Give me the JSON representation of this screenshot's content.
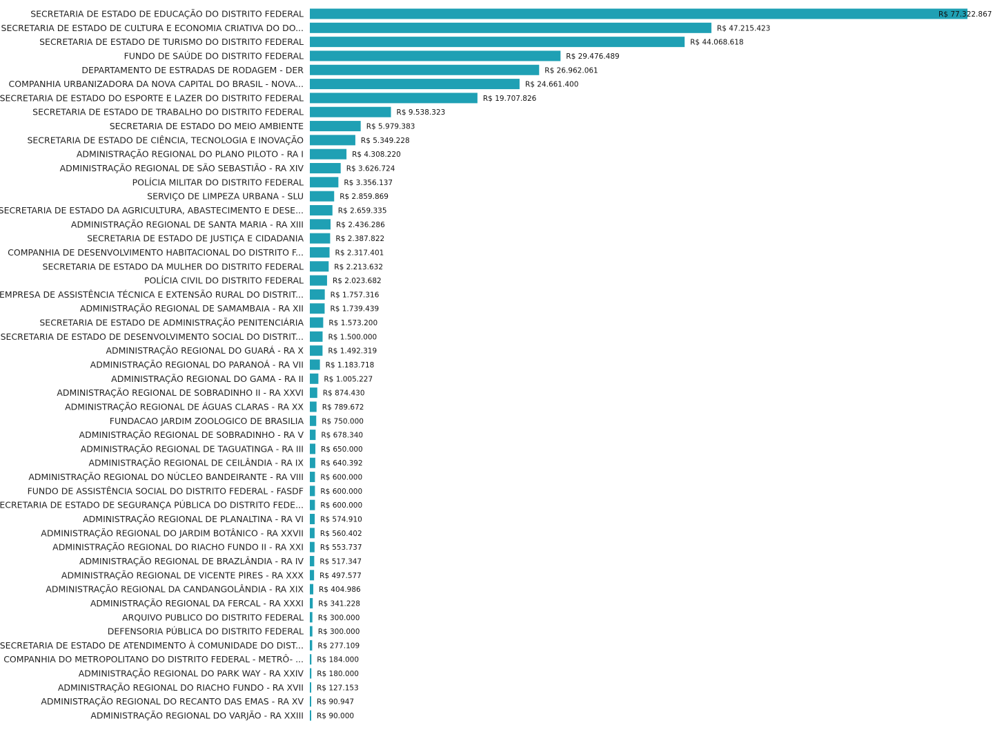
{
  "chart_data": {
    "type": "bar",
    "orientation": "horizontal",
    "bar_color": "#1fa0b4",
    "value_prefix": "R$ ",
    "xlim": [
      0,
      77322867
    ],
    "grid": false,
    "categories": [
      "SECRETARIA DE ESTADO DE EDUCAÇÃO DO DISTRITO FEDERAL",
      "SECRETARIA DE ESTADO DE CULTURA E ECONOMIA CRIATIVA DO DO...",
      "SECRETARIA DE ESTADO DE TURISMO DO DISTRITO FEDERAL",
      "FUNDO DE SAÚDE DO DISTRITO FEDERAL",
      "DEPARTAMENTO DE ESTRADAS DE RODAGEM - DER",
      "COMPANHIA URBANIZADORA DA NOVA CAPITAL DO BRASIL - NOVA...",
      "SECRETARIA DE ESTADO DO ESPORTE E LAZER DO DISTRITO FEDERAL",
      "SECRETARIA DE ESTADO DE TRABALHO DO DISTRITO FEDERAL",
      "SECRETARIA DE ESTADO DO MEIO AMBIENTE",
      "SECRETARIA DE ESTADO DE CIÊNCIA, TECNOLOGIA E INOVAÇÃO",
      "ADMINISTRAÇÃO REGIONAL DO PLANO PILOTO - RA I",
      "ADMINISTRAÇÃO REGIONAL DE SÃO SEBASTIÃO - RA XIV",
      "POLÍCIA MILITAR DO DISTRITO FEDERAL",
      "SERVIÇO DE LIMPEZA URBANA - SLU",
      "SECRETARIA DE ESTADO DA AGRICULTURA, ABASTECIMENTO E DESE...",
      "ADMINISTRAÇÃO REGIONAL DE SANTA MARIA - RA XIII",
      "SECRETARIA DE ESTADO DE JUSTIÇA E CIDADANIA",
      "COMPANHIA DE DESENVOLVIMENTO HABITACIONAL DO DISTRITO F...",
      "SECRETARIA DE ESTADO DA MULHER DO DISTRITO FEDERAL",
      "POLÍCIA CIVIL DO DISTRITO FEDERAL",
      "EMPRESA DE ASSISTÊNCIA TÉCNICA E EXTENSÃO RURAL DO DISTRIT...",
      "ADMINISTRAÇÃO REGIONAL DE SAMAMBAIA - RA XII",
      "SECRETARIA DE ESTADO DE ADMINISTRAÇÃO PENITENCIÁRIA",
      "SECRETARIA DE ESTADO DE DESENVOLVIMENTO SOCIAL DO DISTRIT...",
      "ADMINISTRAÇÃO REGIONAL DO GUARÁ - RA X",
      "ADMINISTRAÇÃO REGIONAL DO PARANOÁ - RA VII",
      "ADMINISTRAÇÃO REGIONAL DO GAMA - RA II",
      "ADMINISTRAÇÃO REGIONAL DE SOBRADINHO II - RA XXVI",
      "ADMINISTRAÇÃO REGIONAL DE ÁGUAS CLARAS - RA XX",
      "FUNDACAO JARDIM ZOOLOGICO DE BRASILIA",
      "ADMINISTRAÇÃO REGIONAL DE SOBRADINHO - RA V",
      "ADMINISTRAÇÃO REGIONAL DE TAGUATINGA - RA III",
      "ADMINISTRAÇÃO REGIONAL DE CEILÂNDIA - RA IX",
      "ADMINISTRAÇÃO REGIONAL DO NÚCLEO BANDEIRANTE - RA VIII",
      "FUNDO DE ASSISTÊNCIA SOCIAL DO DISTRITO FEDERAL - FASDF",
      "SECRETARIA DE ESTADO DE SEGURANÇA PÚBLICA DO DISTRITO FEDE...",
      "ADMINISTRAÇÃO REGIONAL DE PLANALTINA - RA VI",
      "ADMINISTRAÇÃO REGIONAL DO JARDIM BOTÂNICO - RA XXVII",
      "ADMINISTRAÇÃO REGIONAL DO RIACHO FUNDO II - RA XXI",
      "ADMINISTRAÇÃO REGIONAL DE BRAZLÂNDIA - RA IV",
      "ADMINISTRAÇÃO REGIONAL DE VICENTE PIRES - RA XXX",
      "ADMINISTRAÇÃO REGIONAL DA CANDANGOLÂNDIA - RA XIX",
      "ADMINISTRAÇÃO REGIONAL DA FERCAL - RA XXXI",
      "ARQUIVO PUBLICO DO DISTRITO FEDERAL",
      "DEFENSORIA PÚBLICA DO DISTRITO FEDERAL",
      "SECRETARIA DE ESTADO DE ATENDIMENTO À COMUNIDADE DO DIST...",
      "COMPANHIA DO METROPOLITANO DO DISTRITO FEDERAL - METRÔ- ...",
      "ADMINISTRAÇÃO REGIONAL DO PARK WAY - RA XXIV",
      "ADMINISTRAÇÃO REGIONAL DO RIACHO FUNDO - RA XVII",
      "ADMINISTRAÇÃO REGIONAL DO RECANTO DAS EMAS - RA XV",
      "ADMINISTRAÇÃO REGIONAL DO VARJÃO - RA XXIII"
    ],
    "values": [
      77322867,
      47215423,
      44068618,
      29476489,
      26962061,
      24661400,
      19707826,
      9538323,
      5979383,
      5349228,
      4308220,
      3626724,
      3356137,
      2859869,
      2659335,
      2436286,
      2387822,
      2317401,
      2213632,
      2023682,
      1757316,
      1739439,
      1573200,
      1500000,
      1492319,
      1183718,
      1005227,
      874430,
      789672,
      750000,
      678340,
      650000,
      640392,
      600000,
      600000,
      600000,
      574910,
      560402,
      553737,
      517347,
      497577,
      404986,
      341228,
      300000,
      300000,
      277109,
      184000,
      180000,
      127153,
      90947,
      90000
    ],
    "value_labels": [
      "R$ 77.322.867",
      "R$ 47.215.423",
      "R$ 44.068.618",
      "R$ 29.476.489",
      "R$ 26.962.061",
      "R$ 24.661.400",
      "R$ 19.707.826",
      "R$ 9.538.323",
      "R$ 5.979.383",
      "R$ 5.349.228",
      "R$ 4.308.220",
      "R$ 3.626.724",
      "R$ 3.356.137",
      "R$ 2.859.869",
      "R$ 2.659.335",
      "R$ 2.436.286",
      "R$ 2.387.822",
      "R$ 2.317.401",
      "R$ 2.213.632",
      "R$ 2.023.682",
      "R$ 1.757.316",
      "R$ 1.739.439",
      "R$ 1.573.200",
      "R$ 1.500.000",
      "R$ 1.492.319",
      "R$ 1.183.718",
      "R$ 1.005.227",
      "R$ 874.430",
      "R$ 789.672",
      "R$ 750.000",
      "R$ 678.340",
      "R$ 650.000",
      "R$ 640.392",
      "R$ 600.000",
      "R$ 600.000",
      "R$ 600.000",
      "R$ 574.910",
      "R$ 560.402",
      "R$ 553.737",
      "R$ 517.347",
      "R$ 497.577",
      "R$ 404.986",
      "R$ 341.228",
      "R$ 300.000",
      "R$ 300.000",
      "R$ 277.109",
      "R$ 184.000",
      "R$ 180.000",
      "R$ 127.153",
      "R$ 90.947",
      "R$ 90.000"
    ]
  }
}
